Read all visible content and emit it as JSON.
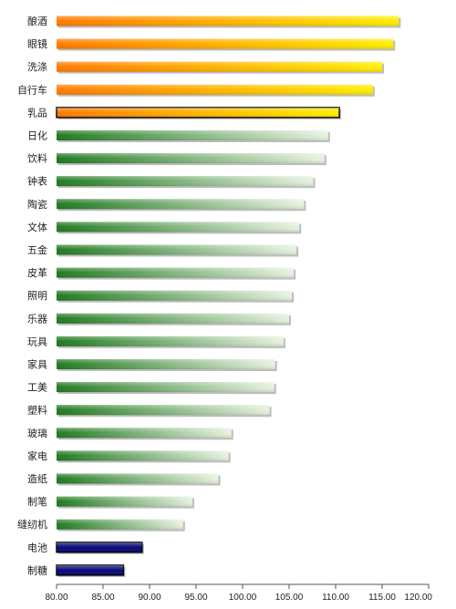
{
  "chart_data": {
    "type": "bar",
    "orientation": "horizontal",
    "categories": [
      "酿酒",
      "眼镜",
      "洗涤",
      "自行车",
      "乳品",
      "日化",
      "饮料",
      "钟表",
      "陶瓷",
      "文体",
      "五金",
      "皮革",
      "照明",
      "乐器",
      "玩具",
      "家具",
      "工美",
      "塑料",
      "玻璃",
      "家电",
      "造纸",
      "制笔",
      "缝纫机",
      "电池",
      "制糖"
    ],
    "values": [
      116.8,
      116.2,
      115.0,
      114.0,
      110.4,
      109.2,
      108.8,
      107.6,
      106.6,
      106.1,
      105.8,
      105.5,
      105.3,
      105.0,
      104.4,
      103.5,
      103.4,
      102.9,
      98.8,
      98.5,
      97.4,
      94.6,
      93.6,
      89.2,
      87.2
    ],
    "bar_groups": [
      "orange",
      "orange",
      "orange",
      "orange",
      "highlight",
      "green",
      "green",
      "green",
      "green",
      "green",
      "green",
      "green",
      "green",
      "green",
      "green",
      "green",
      "green",
      "green",
      "green",
      "green",
      "green",
      "green",
      "green",
      "navy",
      "navy"
    ],
    "xlim": [
      80,
      120
    ],
    "xticks": [
      "80.00",
      "85.00",
      "90.00",
      "95.00",
      "100.00",
      "105.00",
      "110.00",
      "115.00",
      "120.00"
    ],
    "title": "",
    "xlabel": "",
    "ylabel": "",
    "grid": false,
    "legend": false,
    "colors": {
      "orange_start": "#ff7a00",
      "orange_end": "#ffee00",
      "green_start": "#1f7a1f",
      "green_end": "#e8f2e0",
      "navy": "#0a0a7a",
      "axis": "#555555"
    }
  }
}
